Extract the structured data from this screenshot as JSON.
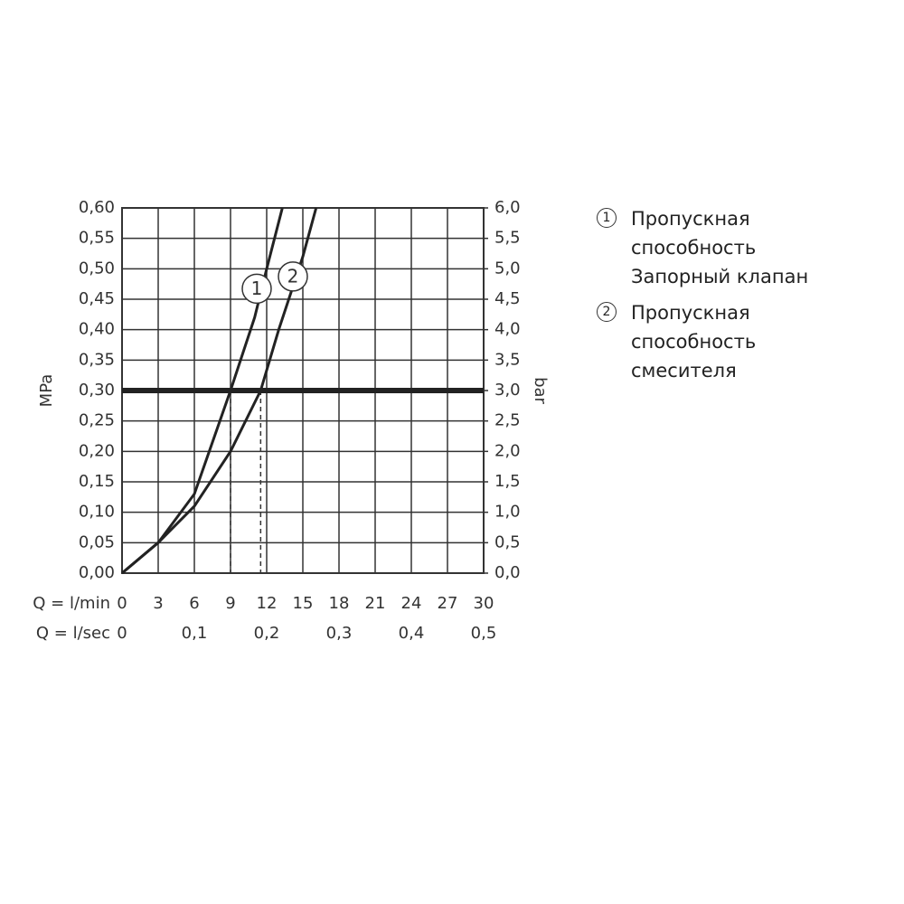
{
  "chart_data": {
    "type": "line",
    "ylabel": "MPa",
    "y2label": "bar",
    "xlabel": "Q = l/min",
    "x2label": "Q = l/sec",
    "xlim": [
      0,
      30
    ],
    "xticks": [
      0,
      3,
      6,
      9,
      12,
      15,
      18,
      21,
      24,
      27,
      30
    ],
    "x2lim": [
      0,
      0.5
    ],
    "x2ticks": [
      {
        "value": 0,
        "label": "0"
      },
      {
        "value": 0.1,
        "label": "0,1"
      },
      {
        "value": 0.2,
        "label": "0,2"
      },
      {
        "value": 0.3,
        "label": "0,3"
      },
      {
        "value": 0.4,
        "label": "0,4"
      },
      {
        "value": 0.5,
        "label": "0,5"
      }
    ],
    "ylim": [
      0,
      0.6
    ],
    "yticks": [
      {
        "value": 0,
        "label": "0,00"
      },
      {
        "value": 0.05,
        "label": "0,05"
      },
      {
        "value": 0.1,
        "label": "0,10"
      },
      {
        "value": 0.15,
        "label": "0,15"
      },
      {
        "value": 0.2,
        "label": "0,20"
      },
      {
        "value": 0.25,
        "label": "0,25"
      },
      {
        "value": 0.3,
        "label": "0,30"
      },
      {
        "value": 0.35,
        "label": "0,35"
      },
      {
        "value": 0.4,
        "label": "0,40"
      },
      {
        "value": 0.45,
        "label": "0,45"
      },
      {
        "value": 0.5,
        "label": "0,50"
      },
      {
        "value": 0.55,
        "label": "0,55"
      },
      {
        "value": 0.6,
        "label": "0,60"
      }
    ],
    "y2lim": [
      0,
      6
    ],
    "y2ticks": [
      {
        "value": 0,
        "label": "0,0"
      },
      {
        "value": 0.5,
        "label": "0,5"
      },
      {
        "value": 1,
        "label": "1,0"
      },
      {
        "value": 1.5,
        "label": "1,5"
      },
      {
        "value": 2,
        "label": "2,0"
      },
      {
        "value": 2.5,
        "label": "2,5"
      },
      {
        "value": 3,
        "label": "3,0"
      },
      {
        "value": 3.5,
        "label": "3,5"
      },
      {
        "value": 4,
        "label": "4,0"
      },
      {
        "value": 4.5,
        "label": "4,5"
      },
      {
        "value": 5,
        "label": "5,0"
      },
      {
        "value": 5.5,
        "label": "5,5"
      },
      {
        "value": 6,
        "label": "6,0"
      }
    ],
    "grid": true,
    "threshold": 0.3,
    "intersections": [
      9,
      11.5
    ],
    "series": [
      {
        "name": "Пропускная способность Запорный клапан",
        "label": "1",
        "color": "#222222",
        "x": [
          0,
          3,
          6,
          9,
          11,
          12,
          13.3
        ],
        "values": [
          0,
          0.05,
          0.13,
          0.3,
          0.42,
          0.5,
          0.6
        ]
      },
      {
        "name": "Пропускная способность смесителя",
        "label": "2",
        "color": "#222222",
        "x": [
          0,
          3,
          6,
          9,
          11.5,
          13,
          15,
          16.1
        ],
        "values": [
          0,
          0.05,
          0.11,
          0.2,
          0.3,
          0.4,
          0.52,
          0.6
        ]
      }
    ]
  }
}
